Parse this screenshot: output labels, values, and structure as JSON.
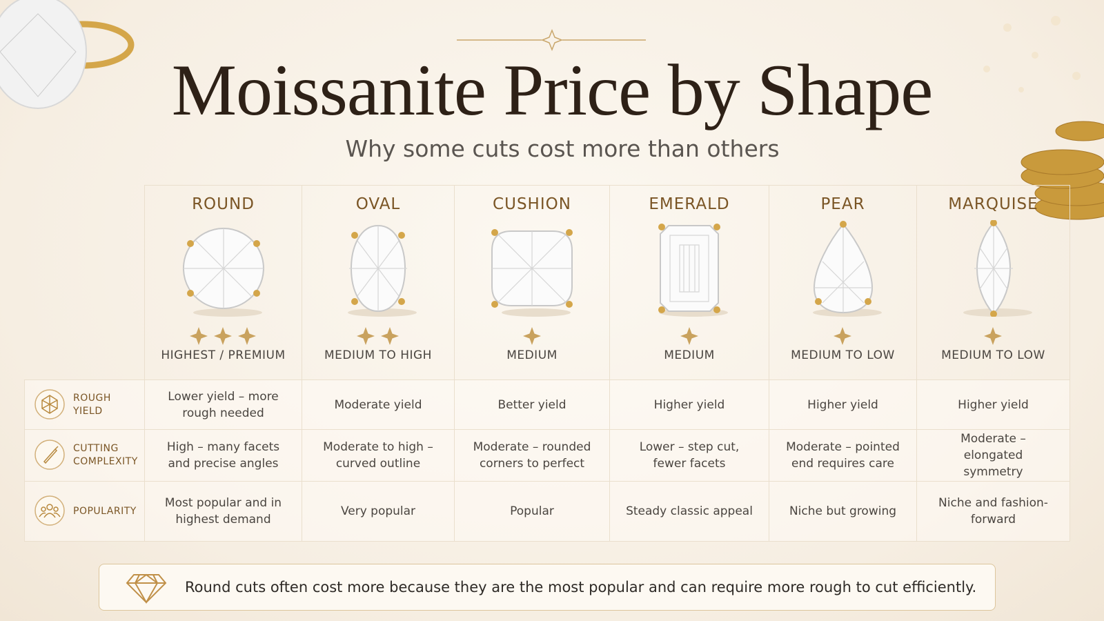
{
  "header": {
    "title": "Moissanite Price by Shape",
    "subtitle": "Why some cuts cost more than others"
  },
  "table": {
    "columns": [
      {
        "name": "ROUND",
        "stars": 3,
        "price": "HIGHEST / PREMIUM"
      },
      {
        "name": "OVAL",
        "stars": 2,
        "price": "MEDIUM TO HIGH"
      },
      {
        "name": "CUSHION",
        "stars": 1,
        "price": "MEDIUM"
      },
      {
        "name": "EMERALD",
        "stars": 1,
        "price": "MEDIUM"
      },
      {
        "name": "PEAR",
        "stars": 1,
        "price": "MEDIUM TO LOW"
      },
      {
        "name": "MARQUISE",
        "stars": 1,
        "price": "MEDIUM TO LOW"
      }
    ],
    "rows": [
      {
        "label": "ROUGH YIELD",
        "cells": [
          "Lower yield – more rough needed",
          "Moderate yield",
          "Better yield",
          "Higher yield",
          "Higher yield",
          "Higher yield"
        ]
      },
      {
        "label": "CUTTING COMPLEXITY",
        "cells": [
          "High – many facets and precise angles",
          "Moderate to high – curved outline",
          "Moderate – rounded corners to perfect",
          "Lower – step cut, fewer facets",
          "Moderate – pointed end requires care",
          "Moderate – elongated symmetry"
        ]
      },
      {
        "label": "POPULARITY",
        "cells": [
          "Most popular and in highest demand",
          "Very popular",
          "Popular",
          "Steady classic appeal",
          "Niche but growing",
          "Niche and fashion-forward"
        ]
      }
    ]
  },
  "footer": {
    "note": "Round cuts often cost more because they are the most popular and can require more rough to cut efficiently."
  }
}
